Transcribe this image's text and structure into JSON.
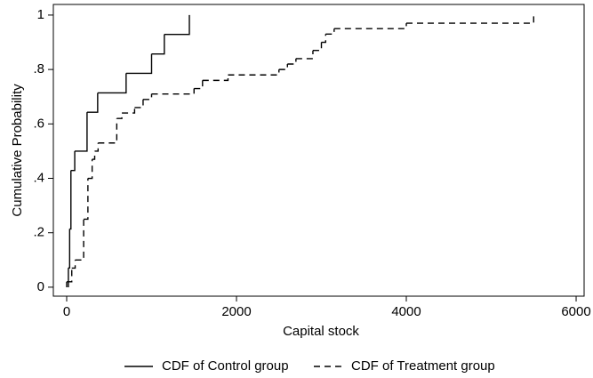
{
  "chart_data": {
    "type": "step",
    "x_label": "Capital stock",
    "y_label": "Cumulative Probability",
    "xlim": [
      -157,
      6094
    ],
    "ylim": [
      -0.033,
      1.039
    ],
    "xticks": [
      0,
      2000,
      4000,
      6000
    ],
    "yticks": [
      0,
      {
        "value": 0.2,
        "label": ".2"
      },
      {
        "value": 0.4,
        "label": ".4"
      },
      {
        "value": 0.6,
        "label": ".6"
      },
      {
        "value": 0.8,
        "label": ".8"
      },
      1
    ],
    "legend": "bottom",
    "series": [
      {
        "name": "CDF of Control group",
        "color": "#000000",
        "dash": "solid",
        "x": [
          20,
          35,
          50,
          95,
          240,
          365,
          700,
          1000,
          1150,
          1445
        ],
        "values": [
          0.071,
          0.214,
          0.429,
          0.5,
          0.643,
          0.714,
          0.786,
          0.857,
          0.929,
          1
        ]
      },
      {
        "name": "CDF of Treatment group",
        "color": "#000000",
        "dash": "dashed",
        "x": [
          0,
          60,
          100,
          200,
          250,
          300,
          330,
          370,
          590,
          650,
          800,
          900,
          1000,
          1500,
          1600,
          1900,
          2500,
          2600,
          2700,
          2900,
          3000,
          3050,
          3150,
          4000,
          5500
        ],
        "values": [
          0.02,
          0.07,
          0.1,
          0.25,
          0.4,
          0.47,
          0.5,
          0.53,
          0.62,
          0.64,
          0.66,
          0.69,
          0.71,
          0.73,
          0.76,
          0.78,
          0.8,
          0.82,
          0.84,
          0.87,
          0.9,
          0.93,
          0.95,
          0.97,
          1
        ]
      }
    ]
  }
}
